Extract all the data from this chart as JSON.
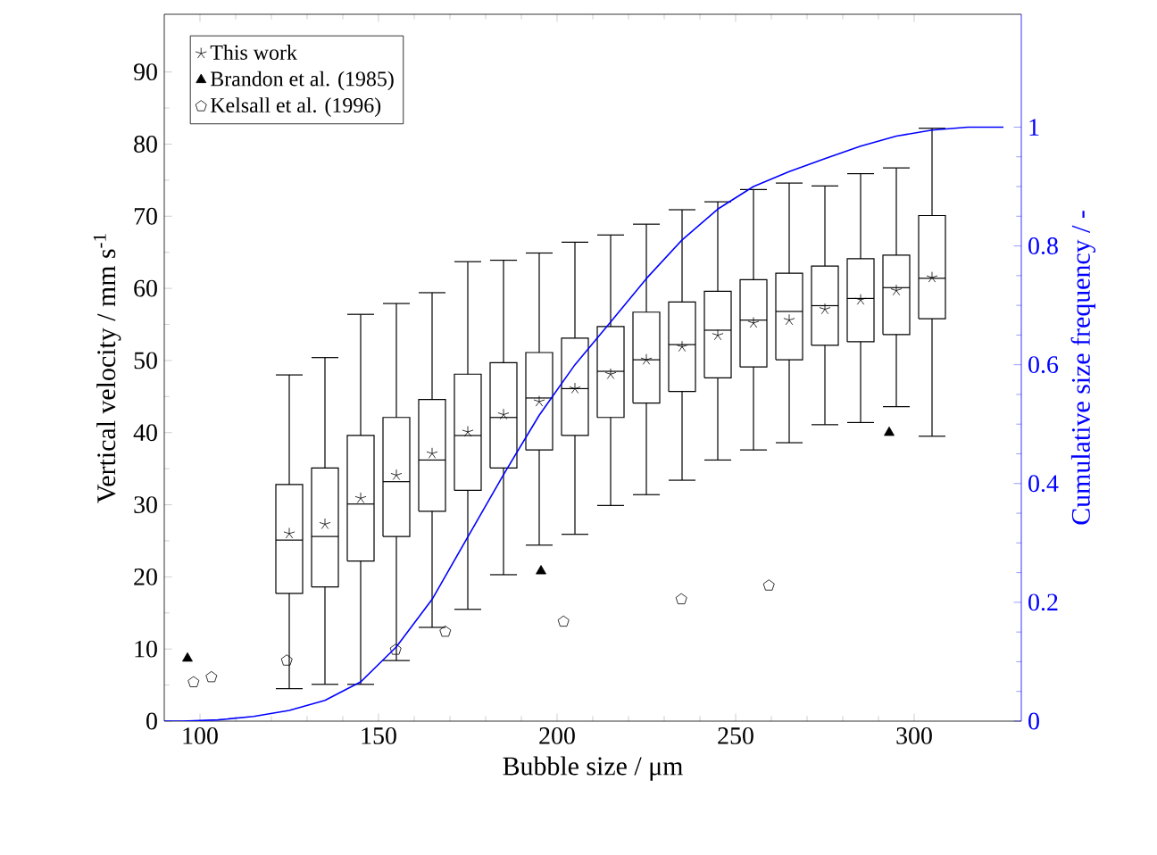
{
  "chart_data": {
    "type": "box",
    "xlabel": "Bubble size / μm",
    "ylabel": "Vertical velocity / mm s$^{-1}$",
    "y2label": "Cumulative size frequency / -",
    "xlim": [
      90,
      330
    ],
    "xticks": [
      100,
      150,
      200,
      250,
      300
    ],
    "ylim": [
      0,
      98
    ],
    "yticks": [
      0,
      10,
      20,
      30,
      40,
      50,
      60,
      70,
      80,
      90
    ],
    "y2lim": [
      0,
      1.19
    ],
    "y2ticks": [
      0,
      0.2,
      0.4,
      0.6,
      0.8,
      1
    ],
    "legend": "top left",
    "grid": false,
    "series": [
      {
        "name": "This work",
        "color": "#000000",
        "marker": "star",
        "x": [
          125,
          135,
          145,
          155,
          165,
          175,
          185,
          195,
          205,
          215,
          225,
          235,
          245,
          255,
          265,
          275,
          285,
          295,
          305
        ],
        "boxes": [
          {
            "low": 4.5,
            "q1": 17.7,
            "median": 25.1,
            "q3": 32.8,
            "high": 48.0,
            "mean": 26.0
          },
          {
            "low": 5.1,
            "q1": 18.6,
            "median": 25.6,
            "q3": 35.1,
            "high": 50.4,
            "mean": 27.3
          },
          {
            "low": 5.1,
            "q1": 22.2,
            "median": 30.1,
            "q3": 39.6,
            "high": 56.4,
            "mean": 30.9
          },
          {
            "low": 8.4,
            "q1": 25.6,
            "median": 33.2,
            "q3": 42.1,
            "high": 57.9,
            "mean": 34.1
          },
          {
            "low": 13.0,
            "q1": 29.1,
            "median": 36.2,
            "q3": 44.6,
            "high": 59.4,
            "mean": 37.1
          },
          {
            "low": 15.5,
            "q1": 32.0,
            "median": 39.6,
            "q3": 48.1,
            "high": 63.7,
            "mean": 40.1
          },
          {
            "low": 20.3,
            "q1": 35.1,
            "median": 42.1,
            "q3": 49.7,
            "high": 63.9,
            "mean": 42.5
          },
          {
            "low": 24.4,
            "q1": 37.6,
            "median": 44.8,
            "q3": 51.1,
            "high": 64.9,
            "mean": 44.3
          },
          {
            "low": 25.9,
            "q1": 39.6,
            "median": 46.1,
            "q3": 53.1,
            "high": 66.4,
            "mean": 46.1
          },
          {
            "low": 29.9,
            "q1": 42.1,
            "median": 48.5,
            "q3": 54.7,
            "high": 67.4,
            "mean": 48.1
          },
          {
            "low": 31.4,
            "q1": 44.1,
            "median": 50.1,
            "q3": 56.7,
            "high": 68.9,
            "mean": 50.1
          },
          {
            "low": 33.4,
            "q1": 45.7,
            "median": 52.2,
            "q3": 58.1,
            "high": 70.9,
            "mean": 51.9
          },
          {
            "low": 36.2,
            "q1": 47.6,
            "median": 54.2,
            "q3": 59.6,
            "high": 72.0,
            "mean": 53.5
          },
          {
            "low": 37.6,
            "q1": 49.1,
            "median": 55.6,
            "q3": 61.2,
            "high": 73.7,
            "mean": 55.2
          },
          {
            "low": 38.6,
            "q1": 50.1,
            "median": 56.8,
            "q3": 62.1,
            "high": 74.6,
            "mean": 55.6
          },
          {
            "low": 41.1,
            "q1": 52.1,
            "median": 57.6,
            "q3": 63.1,
            "high": 74.2,
            "mean": 57.1
          },
          {
            "low": 41.4,
            "q1": 52.6,
            "median": 58.6,
            "q3": 64.1,
            "high": 75.9,
            "mean": 58.4
          },
          {
            "low": 43.6,
            "q1": 53.6,
            "median": 60.1,
            "q3": 64.6,
            "high": 76.7,
            "mean": 59.7
          },
          {
            "low": 39.5,
            "q1": 55.8,
            "median": 61.4,
            "q3": 70.1,
            "high": 82.2,
            "mean": 61.5
          }
        ]
      },
      {
        "name": "Brandon et al. (1985)",
        "type": "scatter",
        "color": "#000000",
        "marker": "triangle",
        "x": [
          96.5,
          195.5,
          293
        ],
        "values": [
          8.7,
          20.8,
          40.0
        ]
      },
      {
        "name": "Kelsall et al. (1996)",
        "type": "scatter",
        "color": "#000000",
        "x": [
          98.2,
          103.2,
          124.3,
          154.8,
          168.7,
          201.8,
          234.8,
          259.3
        ],
        "values": [
          5.4,
          6.1,
          8.4,
          9.9,
          12.4,
          13.8,
          16.9,
          18.8
        ]
      },
      {
        "type": "line",
        "axis": "y2",
        "color": "#0000ff",
        "marker": "none",
        "x": [
          90,
          95,
          105,
          115,
          125,
          135,
          145,
          155,
          165,
          175,
          185,
          195,
          205,
          215,
          225,
          235,
          245,
          255,
          265,
          275,
          285,
          295,
          305,
          315,
          325
        ],
        "values": [
          0,
          0,
          0.002,
          0.008,
          0.018,
          0.035,
          0.066,
          0.125,
          0.205,
          0.31,
          0.415,
          0.515,
          0.6,
          0.672,
          0.745,
          0.81,
          0.862,
          0.9,
          0.925,
          0.947,
          0.968,
          0.985,
          0.995,
          1.0,
          1.0
        ]
      }
    ]
  }
}
